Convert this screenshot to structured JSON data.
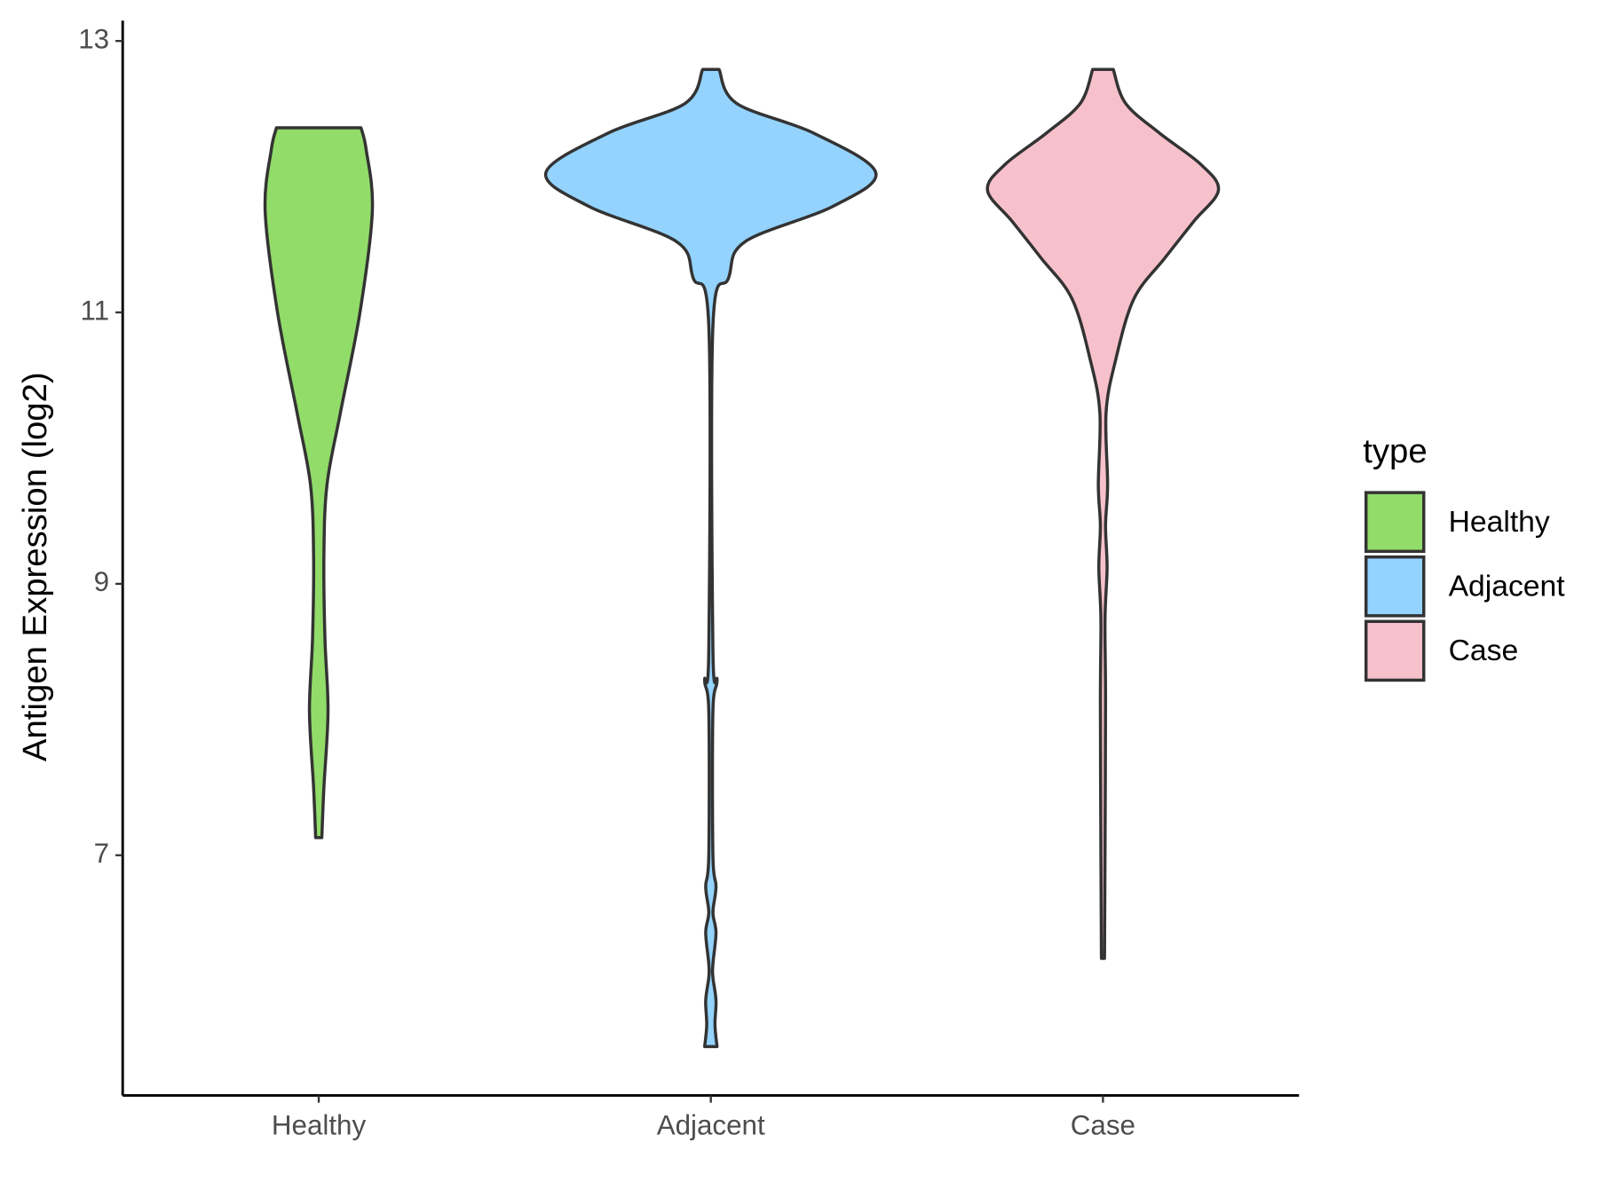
{
  "chart_data": {
    "type": "violin",
    "y_label": "Antigen Expression (log2)",
    "legend_title": "type",
    "legend_position": "right",
    "categories": [
      "Healthy",
      "Adjacent",
      "Case"
    ],
    "ylim": [
      5.23,
      13.15
    ],
    "yticks": [
      7,
      9,
      11,
      13
    ],
    "series": [
      {
        "name": "Healthy",
        "color": "#92dc69",
        "y": [
          7.13,
          7.5,
          8.06,
          8.6,
          9.2,
          9.73,
          10.26,
          11.0,
          11.75,
          12.2,
          12.36
        ],
        "density": [
          3,
          5,
          9,
          6,
          5,
          8,
          21,
          40,
          52,
          46,
          41
        ]
      },
      {
        "name": "Adjacent",
        "color": "#93d3fe",
        "y": [
          5.59,
          5.75,
          5.93,
          6.1,
          6.2,
          6.43,
          6.58,
          6.77,
          7.0,
          8.06,
          8.29,
          8.52,
          10.9,
          11.25,
          11.52,
          11.78,
          12.03,
          12.32,
          12.54,
          12.79
        ],
        "density": [
          6,
          4,
          5,
          2,
          2,
          5,
          2,
          5,
          2,
          2,
          6,
          2,
          2,
          17,
          33,
          118,
          160,
          100,
          25,
          8
        ]
      },
      {
        "name": "Case",
        "color": "#f7c1cb",
        "y": [
          6.24,
          7.0,
          8.14,
          8.74,
          9.12,
          9.43,
          9.73,
          10.26,
          10.64,
          11.1,
          11.4,
          11.67,
          11.9,
          12.09,
          12.32,
          12.54,
          12.79
        ],
        "density": [
          1.5,
          2,
          2.5,
          2,
          4,
          2.5,
          4.5,
          3,
          12,
          30,
          60,
          88,
          112,
          95,
          55,
          22,
          10
        ]
      }
    ]
  }
}
